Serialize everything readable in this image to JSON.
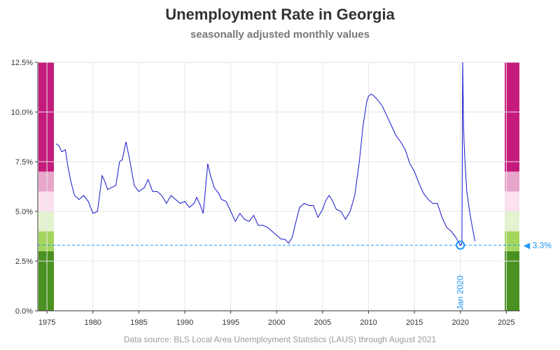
{
  "header": {
    "title": "Unemployment Rate in Georgia",
    "subtitle": "seasonally adjusted monthly values"
  },
  "footer": {
    "source": "Data source: BLS Local Area Unemployment Statistics (LAUS) through August 2021"
  },
  "chart_data": {
    "type": "line",
    "title": "Unemployment Rate in Georgia",
    "subtitle": "seasonally adjusted monthly values",
    "xlabel": "",
    "ylabel": "",
    "xlim": [
      1974,
      2026.5
    ],
    "ylim": [
      0,
      12.5
    ],
    "x_ticks": [
      1975,
      1980,
      1985,
      1990,
      1995,
      2000,
      2005,
      2010,
      2015,
      2020,
      2025
    ],
    "y_ticks": [
      0,
      2.5,
      5,
      7.5,
      10,
      12.5
    ],
    "y_tick_labels": [
      "0.0%",
      "2.5%",
      "5.0%",
      "7.5%",
      "10.0%",
      "12.5%"
    ],
    "grid": true,
    "line_color": "#1515cc",
    "series": [
      {
        "x": [
          1976.0,
          1976.3,
          1976.6,
          1977.0,
          1977.3,
          1977.6,
          1978.0,
          1978.5,
          1979.0,
          1979.5,
          1980.0,
          1980.5,
          1981.0,
          1981.3,
          1981.6,
          1982.0,
          1982.5,
          1982.9,
          1983.2,
          1983.6,
          1984.0,
          1984.5,
          1985.0,
          1985.3,
          1985.6,
          1986.0,
          1986.5,
          1987.0,
          1987.5,
          1988.0,
          1988.5,
          1989.0,
          1989.5,
          1990.0,
          1990.5,
          1991.0,
          1991.3,
          1991.7,
          1992.0,
          1992.05,
          1992.5,
          1992.8,
          1993.2,
          1993.7,
          1994.0,
          1994.5,
          1995.0,
          1995.5,
          1996.0,
          1996.5,
          1997.0,
          1997.5,
          1998.0,
          1998.5,
          1999.0,
          1999.5,
          2000.0,
          2000.5,
          2000.9,
          2001.3,
          2001.7,
          2002.0,
          2002.5,
          2003.0,
          2003.5,
          2004.0,
          2004.5,
          2005.0,
          2005.3,
          2005.7,
          2006.0,
          2006.5,
          2007.0,
          2007.5,
          2008.0,
          2008.5,
          2009.0,
          2009.4,
          2009.8,
          2010.0,
          2010.3,
          2010.6,
          2011.0,
          2011.5,
          2012.0,
          2012.5,
          2013.0,
          2013.5,
          2014.0,
          2014.5,
          2015.0,
          2015.5,
          2016.0,
          2016.5,
          2017.0,
          2017.5,
          2018.0,
          2018.5,
          2019.0,
          2019.5,
          2020.0,
          2020.17,
          2020.25,
          2020.33,
          2020.4,
          2020.5,
          2020.7,
          2021.0,
          2021.3,
          2021.6
        ],
        "y": [
          8.4,
          8.3,
          8.0,
          8.1,
          7.2,
          6.5,
          5.8,
          5.6,
          5.8,
          5.5,
          4.9,
          5.0,
          6.8,
          6.5,
          6.1,
          6.2,
          6.3,
          7.5,
          7.6,
          8.5,
          7.6,
          6.3,
          6.0,
          6.1,
          6.2,
          6.6,
          6.0,
          6.0,
          5.8,
          5.4,
          5.8,
          5.6,
          5.4,
          5.5,
          5.2,
          5.4,
          5.7,
          5.3,
          4.9,
          5.1,
          7.4,
          6.8,
          6.2,
          5.9,
          5.6,
          5.5,
          5.0,
          4.5,
          4.9,
          4.6,
          4.5,
          4.8,
          4.3,
          4.3,
          4.2,
          4.0,
          3.8,
          3.6,
          3.6,
          3.4,
          3.7,
          4.3,
          5.2,
          5.4,
          5.3,
          5.3,
          4.7,
          5.1,
          5.5,
          5.8,
          5.6,
          5.1,
          5.0,
          4.6,
          5.0,
          5.8,
          7.5,
          9.3,
          10.5,
          10.8,
          10.9,
          10.8,
          10.6,
          10.3,
          9.8,
          9.3,
          8.8,
          8.5,
          8.1,
          7.4,
          7.0,
          6.4,
          5.9,
          5.6,
          5.4,
          5.4,
          4.7,
          4.2,
          4.0,
          3.7,
          3.3,
          3.4,
          12.6,
          9.6,
          8.5,
          7.5,
          6.0,
          5.0,
          4.2,
          3.5
        ]
      }
    ],
    "side_bands": {
      "ranges": [
        [
          0,
          3.0
        ],
        [
          3.0,
          4.0
        ],
        [
          4.0,
          5.0
        ],
        [
          5.0,
          6.0
        ],
        [
          6.0,
          7.0
        ],
        [
          7.0,
          12.5
        ]
      ],
      "colors": [
        "#4b9121",
        "#a4d65e",
        "#e4f3cf",
        "#fce0ef",
        "#e8a6cb",
        "#c51b7d"
      ]
    },
    "reference_line": {
      "y": 3.3,
      "label": "◀ 3.3%",
      "color": "#2196F3"
    },
    "highlight_point": {
      "x": 2020.0,
      "y": 3.3,
      "label": "Jan 2020"
    }
  }
}
